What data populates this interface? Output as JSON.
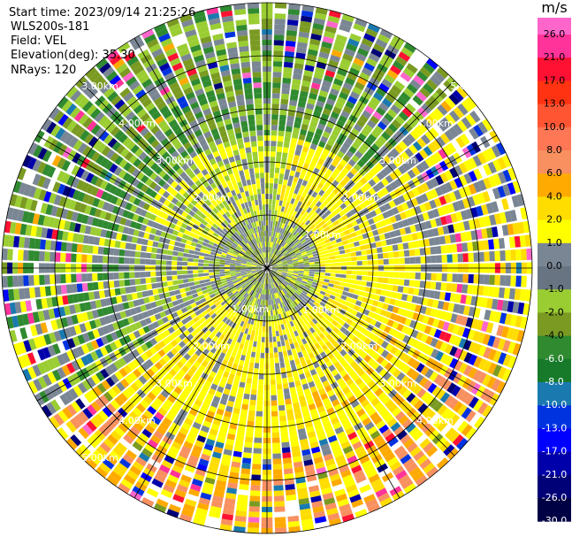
{
  "header": {
    "lines": [
      "Start time: 2023/09/14 21:25:26",
      "WLS200s-181",
      "Field: VEL",
      "Elevation(deg): 35.30",
      "NRays: 120"
    ]
  },
  "range_labels": [
    "1.00km",
    "2.00km",
    "3.00km",
    "4.00km",
    "5.00km"
  ],
  "colorbar": {
    "unit": "m/s",
    "ticks": [
      "26.0",
      "21.0",
      "17.0",
      "13.0",
      "10.0",
      "8.0",
      "6.0",
      "4.0",
      "2.0",
      "1.0",
      "0.0",
      "-1.0",
      "-2.0",
      "-4.0",
      "-6.0",
      "-8.0",
      "-10.0",
      "-13.0",
      "-17.0",
      "-21.0",
      "-26.0",
      "-30.0"
    ],
    "colors": [
      "#ff66cc",
      "#ff3399",
      "#ff1133",
      "#ff3311",
      "#ff5533",
      "#ff7755",
      "#f89060",
      "#ffaa00",
      "#ffdd00",
      "#ffff00",
      "#7a8694",
      "#687482",
      "#9acd32",
      "#7a9a22",
      "#2f8a30",
      "#167a2a",
      "#1a7ab0",
      "#0033e0",
      "#0000ff",
      "#0000aa",
      "#000077",
      "#000044"
    ]
  }
}
